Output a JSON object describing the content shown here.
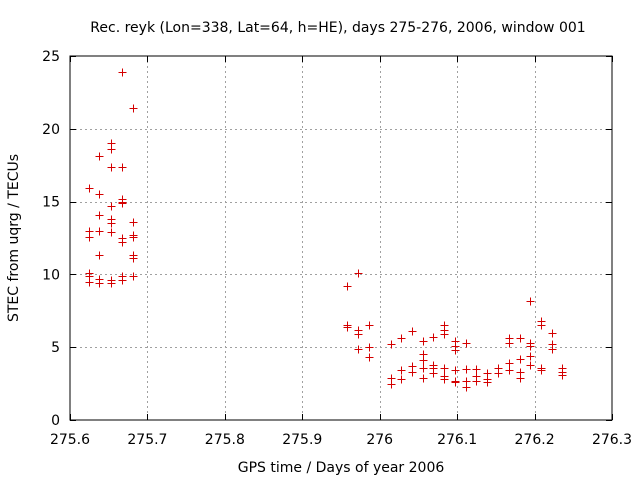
{
  "chart_data": {
    "type": "scatter",
    "title": "Rec. reyk (Lon=338, Lat=64, h=HE), days 275-276, 2006, window 001",
    "xlabel": "GPS time / Days of year 2006",
    "ylabel": "STEC from uqrg / TECUs",
    "xlim": [
      275.6,
      276.3
    ],
    "ylim": [
      0,
      25
    ],
    "xticks": [
      275.6,
      275.7,
      275.8,
      275.9,
      276.0,
      276.1,
      276.2,
      276.3
    ],
    "xtick_labels": [
      "275.6",
      "275.7",
      "275.8",
      "275.9",
      "276",
      "276.1",
      "276.2",
      "276.3"
    ],
    "yticks": [
      0,
      5,
      10,
      15,
      20,
      25
    ],
    "ytick_labels": [
      "0",
      "5",
      "10",
      "15",
      "20",
      "25"
    ],
    "grid": true,
    "marker": "+",
    "series": [
      {
        "name": "STEC",
        "color": "#d40000",
        "points": [
          [
            275.624,
            15.9
          ],
          [
            275.624,
            13.0
          ],
          [
            275.624,
            12.6
          ],
          [
            275.624,
            10.1
          ],
          [
            275.624,
            9.9
          ],
          [
            275.624,
            9.5
          ],
          [
            275.638,
            18.1
          ],
          [
            275.638,
            15.5
          ],
          [
            275.638,
            14.1
          ],
          [
            275.638,
            13.0
          ],
          [
            275.638,
            11.3
          ],
          [
            275.638,
            9.7
          ],
          [
            275.638,
            9.4
          ],
          [
            275.653,
            19.0
          ],
          [
            275.653,
            18.6
          ],
          [
            275.653,
            17.4
          ],
          [
            275.653,
            14.7
          ],
          [
            275.653,
            13.8
          ],
          [
            275.653,
            13.5
          ],
          [
            275.653,
            12.9
          ],
          [
            275.653,
            9.6
          ],
          [
            275.653,
            9.4
          ],
          [
            275.667,
            23.9
          ],
          [
            275.667,
            17.4
          ],
          [
            275.667,
            15.2
          ],
          [
            275.667,
            15.0
          ],
          [
            275.667,
            14.9
          ],
          [
            275.667,
            12.5
          ],
          [
            275.667,
            12.2
          ],
          [
            275.667,
            9.9
          ],
          [
            275.667,
            9.6
          ],
          [
            275.681,
            21.4
          ],
          [
            275.681,
            13.6
          ],
          [
            275.681,
            12.7
          ],
          [
            275.681,
            12.6
          ],
          [
            275.681,
            11.3
          ],
          [
            275.681,
            11.1
          ],
          [
            275.681,
            9.9
          ],
          [
            275.958,
            9.2
          ],
          [
            275.958,
            6.5
          ],
          [
            275.958,
            6.4
          ],
          [
            275.972,
            10.1
          ],
          [
            275.972,
            6.2
          ],
          [
            275.972,
            5.9
          ],
          [
            275.972,
            4.9
          ],
          [
            275.986,
            6.5
          ],
          [
            275.986,
            5.0
          ],
          [
            275.986,
            4.3
          ],
          [
            276.014,
            5.2
          ],
          [
            276.014,
            2.9
          ],
          [
            276.014,
            2.5
          ],
          [
            276.028,
            5.6
          ],
          [
            276.028,
            3.4
          ],
          [
            276.028,
            2.8
          ],
          [
            276.042,
            6.1
          ],
          [
            276.042,
            3.7
          ],
          [
            276.042,
            3.3
          ],
          [
            276.056,
            5.4
          ],
          [
            276.056,
            4.5
          ],
          [
            276.056,
            4.1
          ],
          [
            276.056,
            3.6
          ],
          [
            276.056,
            2.9
          ],
          [
            276.069,
            5.7
          ],
          [
            276.069,
            3.8
          ],
          [
            276.069,
            3.6
          ],
          [
            276.069,
            3.2
          ],
          [
            276.083,
            6.5
          ],
          [
            276.083,
            6.2
          ],
          [
            276.083,
            5.9
          ],
          [
            276.083,
            3.6
          ],
          [
            276.083,
            3.0
          ],
          [
            276.083,
            2.8
          ],
          [
            276.097,
            5.4
          ],
          [
            276.097,
            5.1
          ],
          [
            276.097,
            4.8
          ],
          [
            276.097,
            3.4
          ],
          [
            276.097,
            2.7
          ],
          [
            276.097,
            2.6
          ],
          [
            276.111,
            5.3
          ],
          [
            276.111,
            3.5
          ],
          [
            276.111,
            2.7
          ],
          [
            276.111,
            2.3
          ],
          [
            276.125,
            3.5
          ],
          [
            276.125,
            3.0
          ],
          [
            276.125,
            2.7
          ],
          [
            276.139,
            3.2
          ],
          [
            276.139,
            2.8
          ],
          [
            276.139,
            2.6
          ],
          [
            276.153,
            3.6
          ],
          [
            276.153,
            3.2
          ],
          [
            276.167,
            5.6
          ],
          [
            276.167,
            5.3
          ],
          [
            276.167,
            3.9
          ],
          [
            276.167,
            3.4
          ],
          [
            276.181,
            5.6
          ],
          [
            276.181,
            4.2
          ],
          [
            276.181,
            3.3
          ],
          [
            276.181,
            2.9
          ],
          [
            276.194,
            8.2
          ],
          [
            276.194,
            5.3
          ],
          [
            276.194,
            5.1
          ],
          [
            276.194,
            4.4
          ],
          [
            276.194,
            3.8
          ],
          [
            276.208,
            6.8
          ],
          [
            276.208,
            6.5
          ],
          [
            276.208,
            3.6
          ],
          [
            276.208,
            3.4
          ],
          [
            276.222,
            6.0
          ],
          [
            276.222,
            5.2
          ],
          [
            276.222,
            4.9
          ],
          [
            276.236,
            3.6
          ],
          [
            276.236,
            3.3
          ],
          [
            276.236,
            3.1
          ]
        ]
      }
    ]
  }
}
